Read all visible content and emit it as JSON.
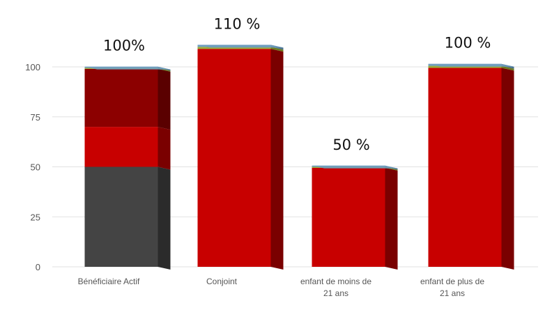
{
  "chart_data": {
    "type": "bar",
    "stacked": true,
    "three_d": true,
    "categories": [
      [
        "Bénéficiaire Actif"
      ],
      [
        "Conjoint"
      ],
      [
        "enfant de moins de",
        "21 ans"
      ],
      [
        "enfant de plus de",
        "21 ans"
      ]
    ],
    "data_labels": [
      "100%",
      "110 %",
      "50 %",
      "100 %"
    ],
    "series": [
      {
        "values": [
          50,
          0,
          0,
          0
        ],
        "color": "#444444",
        "side_color": "#2b2b2b"
      },
      {
        "values": [
          20,
          109,
          49.5,
          99.5
        ],
        "color": "#c80000",
        "side_color": "#7a0000"
      },
      {
        "values": [
          29,
          0,
          0,
          0
        ],
        "color": "#8c0000",
        "side_color": "#5a0000"
      },
      {
        "values": [
          0.5,
          1,
          0.5,
          1
        ],
        "color": "#9aaa3a",
        "side_color": "#6c7a20"
      },
      {
        "values": [
          0.6,
          1,
          0.6,
          1
        ],
        "color": "#6f9ec0",
        "side_color": "#4a7290"
      }
    ],
    "y_ticks": [
      0,
      25,
      50,
      75,
      100
    ],
    "ylim": [
      0,
      110
    ],
    "grid": true,
    "legend": "none",
    "title": "",
    "xlabel": "",
    "ylabel": ""
  }
}
